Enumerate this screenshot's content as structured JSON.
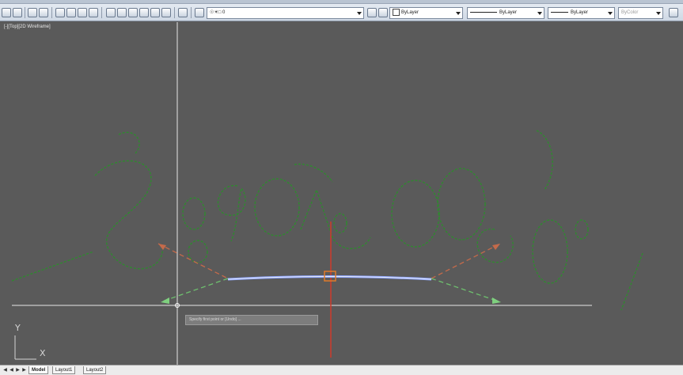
{
  "toolbar": {
    "layer_combo": "☉☀□ 0",
    "color_combo": "ByLayer",
    "linetype_combo": "ByLayer",
    "lineweight_combo": "ByLayer",
    "plotstyle_combo": "ByColor"
  },
  "viewport": {
    "label": "[-][Top][2D Wireframe]",
    "dynamic_input": "Specify first point or [Undo] ..."
  },
  "ucs": {
    "y_label": "Y",
    "x_label": "X"
  },
  "tabs": {
    "model": "Model",
    "layout1": "Layout1",
    "layout2": "Layout2"
  },
  "colors": {
    "background": "#5a5a5a",
    "crosshair": "#e6e6e6",
    "selected_line": "#8fa6ff",
    "green_text": "#2f8a2f",
    "red_axis": "#d03a2a"
  }
}
